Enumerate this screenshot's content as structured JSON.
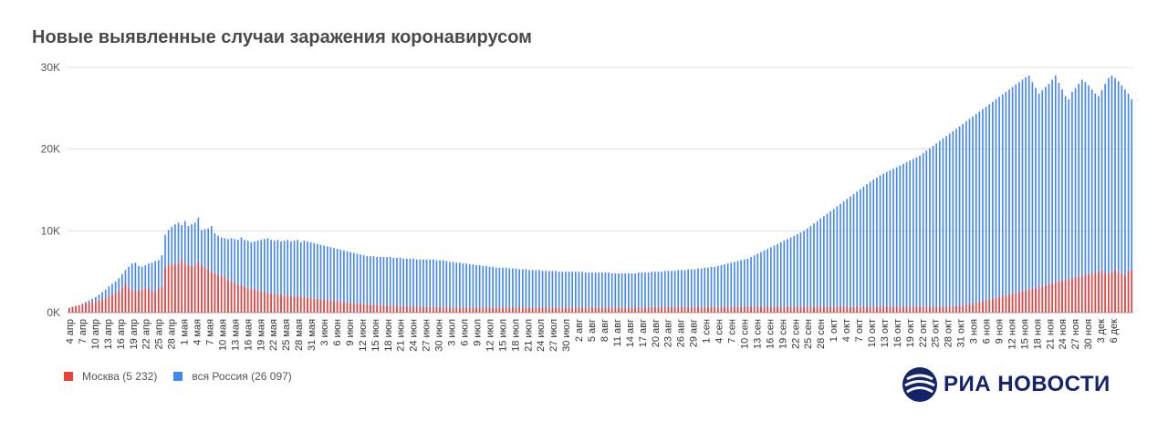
{
  "title": "Новые выявленные случаи заражения коронавирусом",
  "legend": {
    "moscow": "Москва (5 232)",
    "russia": "вся Россия (26 097)"
  },
  "brand": {
    "name": "РИА НОВОСТИ"
  },
  "colors": {
    "moscow": "#ea4335",
    "russia": "#4285f4",
    "grid": "#e0e0e0",
    "text": "#555555"
  },
  "chart_data": {
    "type": "bar",
    "x_ticks": [
      "4 апр",
      "7 апр",
      "10 апр",
      "13 апр",
      "16 апр",
      "19 апр",
      "22 апр",
      "25 апр",
      "28 апр",
      "1 мая",
      "4 мая",
      "7 мая",
      "10 мая",
      "13 мая",
      "16 мая",
      "19 мая",
      "22 мая",
      "25 мая",
      "28 мая",
      "31 мая",
      "3 июн",
      "6 июн",
      "9 июн",
      "12 июн",
      "15 июн",
      "18 июн",
      "21 июн",
      "24 июн",
      "27 июн",
      "30 июн",
      "3 июл",
      "6 июл",
      "9 июл",
      "12 июл",
      "15 июл",
      "18 июл",
      "21 июл",
      "24 июл",
      "27 июл",
      "30 июл",
      "2 авг",
      "5 авг",
      "8 авг",
      "11 авг",
      "14 авг",
      "17 авг",
      "20 авг",
      "23 авг",
      "26 авг",
      "29 авг",
      "1 сен",
      "4 сен",
      "7 сен",
      "10 сен",
      "13 сен",
      "16 сен",
      "19 сен",
      "22 сен",
      "25 сен",
      "28 сен",
      "1 окт",
      "4 окт",
      "7 окт",
      "10 окт",
      "13 окт",
      "16 окт",
      "19 окт",
      "22 окт",
      "25 окт",
      "28 окт",
      "31 окт",
      "3 ноя",
      "6 ноя",
      "9 ноя",
      "12 ноя",
      "15 ноя",
      "18 ноя",
      "21 ноя",
      "24 ноя",
      "27 ноя",
      "30 ноя",
      "3 дек",
      "6 дек"
    ],
    "y_ticks": [
      "0K",
      "10K",
      "20K",
      "30K"
    ],
    "ylim": [
      0,
      30000
    ],
    "series": [
      {
        "name": "Москва (5 232)",
        "values": [
          500,
          700,
          800,
          900,
          1000,
          1100,
          1200,
          1300,
          1400,
          1500,
          1600,
          1800,
          2000,
          2200,
          2400,
          2600,
          3000,
          3500,
          3000,
          2800,
          2500,
          2700,
          2900,
          2900,
          3000,
          2600,
          2500,
          2900,
          3200,
          5500,
          5800,
          6000,
          5900,
          6000,
          6500,
          6000,
          5800,
          5700,
          5800,
          6200,
          5800,
          5500,
          5300,
          5000,
          4800,
          4600,
          4500,
          4400,
          4000,
          3800,
          3600,
          3400,
          3300,
          3200,
          3000,
          2900,
          2800,
          2700,
          2600,
          2500,
          2400,
          2300,
          2300,
          2200,
          2200,
          2100,
          2100,
          2000,
          2000,
          2000,
          1900,
          1900,
          1800,
          1800,
          1700,
          1700,
          1600,
          1600,
          1500,
          1500,
          1400,
          1400,
          1300,
          1300,
          1200,
          1200,
          1100,
          1100,
          1100,
          1000,
          1000,
          1000,
          950,
          900,
          900,
          850,
          850,
          800,
          800,
          780,
          760,
          750,
          740,
          720,
          700,
          700,
          690,
          680,
          670,
          660,
          650,
          650,
          640,
          630,
          620,
          610,
          600,
          600,
          600,
          600,
          600,
          600,
          600,
          600,
          600,
          600,
          600,
          600,
          600,
          600,
          600,
          600,
          600,
          600,
          600,
          600,
          600,
          600,
          600,
          600,
          600,
          600,
          600,
          600,
          600,
          600,
          600,
          600,
          600,
          600,
          600,
          600,
          600,
          600,
          600,
          600,
          600,
          600,
          600,
          600,
          600,
          600,
          600,
          600,
          600,
          600,
          600,
          600,
          600,
          600,
          600,
          600,
          600,
          600,
          600,
          600,
          650,
          650,
          650,
          650,
          650,
          650,
          650,
          650,
          650,
          650,
          650,
          650,
          650,
          650,
          650,
          650,
          650,
          650,
          650,
          650,
          650,
          650,
          650,
          700,
          700,
          700,
          700,
          700,
          700,
          700,
          700,
          700,
          700,
          700,
          700,
          700,
          700,
          700,
          700,
          700,
          700,
          700,
          700,
          700,
          700,
          700,
          700,
          700,
          700,
          700,
          700,
          700,
          700,
          700,
          700,
          700,
          700,
          700,
          700,
          700,
          700,
          700,
          700,
          700,
          700,
          700,
          700,
          700,
          700,
          700,
          700,
          700,
          700,
          700,
          700,
          700,
          700,
          700,
          700,
          700,
          700,
          700,
          700,
          700,
          700,
          700,
          700,
          700,
          700,
          700,
          700,
          750,
          800,
          850,
          900,
          950,
          1000,
          1100,
          1200,
          1300,
          1400,
          1500,
          1600,
          1700,
          1800,
          1900,
          2000,
          2100,
          2200,
          2300,
          2400,
          2500,
          2600,
          2700,
          2800,
          2900,
          3000,
          3100,
          3200,
          3300,
          3500,
          3600,
          3700,
          3800,
          3900,
          4000,
          4100,
          4200,
          4300,
          4400,
          4500,
          4600,
          4700,
          4800,
          4900,
          5000,
          5100,
          4800,
          4700,
          5000,
          5200,
          4900,
          4800,
          4500,
          5100,
          5200,
          4800,
          4400,
          4600,
          5300,
          5400,
          5200,
          4900,
          5000,
          5200,
          5300,
          5400,
          5600,
          5700,
          5800,
          5900,
          6000,
          6100,
          6200,
          5800,
          5900,
          6000,
          6100,
          6300,
          6400,
          6500,
          6600,
          6300,
          6500,
          6700,
          6800,
          6900,
          7000,
          7100,
          7200,
          6900,
          7000,
          7300,
          7500,
          7700,
          7900,
          7600,
          7300,
          7000,
          7500,
          7900,
          7700,
          7600,
          5200,
          5232
        ]
      },
      {
        "name": "вся Россия (26 097)",
        "values": [
          600,
          700,
          800,
          900,
          1100,
          1300,
          1500,
          1700,
          1900,
          2200,
          2500,
          2800,
          3200,
          3500,
          3800,
          4200,
          4700,
          5200,
          5600,
          6000,
          6100,
          5700,
          5600,
          5800,
          6000,
          6100,
          6300,
          6400,
          7000,
          9500,
          10100,
          10500,
          10800,
          11000,
          10700,
          11200,
          10600,
          10800,
          11000,
          11600,
          10100,
          10200,
          10300,
          10600,
          9700,
          9400,
          9200,
          9100,
          9000,
          9100,
          9000,
          8900,
          9200,
          8900,
          8800,
          8600,
          8700,
          8800,
          8900,
          9000,
          9100,
          8900,
          8800,
          8900,
          8700,
          8800,
          8900,
          8700,
          8800,
          8900,
          8600,
          8800,
          8700,
          8600,
          8500,
          8400,
          8300,
          8200,
          8100,
          8000,
          7900,
          7800,
          7700,
          7600,
          7500,
          7400,
          7300,
          7200,
          7100,
          7000,
          6900,
          6900,
          6900,
          6800,
          6800,
          6800,
          6800,
          6800,
          6700,
          6700,
          6700,
          6600,
          6600,
          6600,
          6600,
          6500,
          6500,
          6500,
          6500,
          6500,
          6500,
          6400,
          6400,
          6400,
          6300,
          6200,
          6200,
          6100,
          6100,
          6000,
          6000,
          5900,
          5900,
          5800,
          5800,
          5700,
          5700,
          5600,
          5600,
          5500,
          5500,
          5500,
          5500,
          5400,
          5400,
          5400,
          5300,
          5300,
          5300,
          5200,
          5200,
          5200,
          5200,
          5100,
          5100,
          5100,
          5100,
          5100,
          5000,
          5000,
          5000,
          5000,
          5000,
          5000,
          5000,
          5000,
          4900,
          4900,
          4900,
          4900,
          4900,
          4900,
          4900,
          4900,
          4800,
          4800,
          4800,
          4800,
          4800,
          4800,
          4800,
          4800,
          4900,
          4900,
          4900,
          4900,
          5000,
          5000,
          5000,
          5000,
          5100,
          5100,
          5100,
          5100,
          5200,
          5200,
          5200,
          5300,
          5300,
          5300,
          5400,
          5400,
          5500,
          5500,
          5600,
          5600,
          5700,
          5800,
          5900,
          6000,
          6100,
          6200,
          6300,
          6400,
          6500,
          6600,
          6800,
          7000,
          7200,
          7400,
          7600,
          7800,
          8000,
          8200,
          8400,
          8600,
          8800,
          9000,
          9200,
          9400,
          9600,
          9800,
          10000,
          10300,
          10600,
          10900,
          11200,
          11500,
          11800,
          12100,
          12400,
          12700,
          13000,
          13300,
          13600,
          13900,
          14200,
          14500,
          14800,
          15100,
          15400,
          15700,
          16000,
          16300,
          16500,
          16800,
          17000,
          17200,
          17400,
          17600,
          17800,
          18000,
          18200,
          18400,
          18600,
          18800,
          19000,
          19200,
          19500,
          19800,
          20100,
          20400,
          20700,
          21000,
          21300,
          21600,
          21900,
          22200,
          22500,
          22800,
          23100,
          23400,
          23700,
          24000,
          24300,
          24600,
          24900,
          25200,
          25500,
          25800,
          26100,
          26400,
          26700,
          27000,
          27300,
          27600,
          27900,
          28200,
          28500,
          28800,
          29000,
          28200,
          27500,
          26800,
          27200,
          27600,
          28000,
          28500,
          29000,
          28100,
          27300,
          26500,
          26097,
          27000,
          27500,
          28000,
          28500,
          28200,
          27800,
          27300,
          26800,
          26500,
          27200,
          28000,
          28700,
          29000,
          28700,
          28300,
          27800,
          27300,
          26800,
          26097
        ]
      }
    ]
  }
}
